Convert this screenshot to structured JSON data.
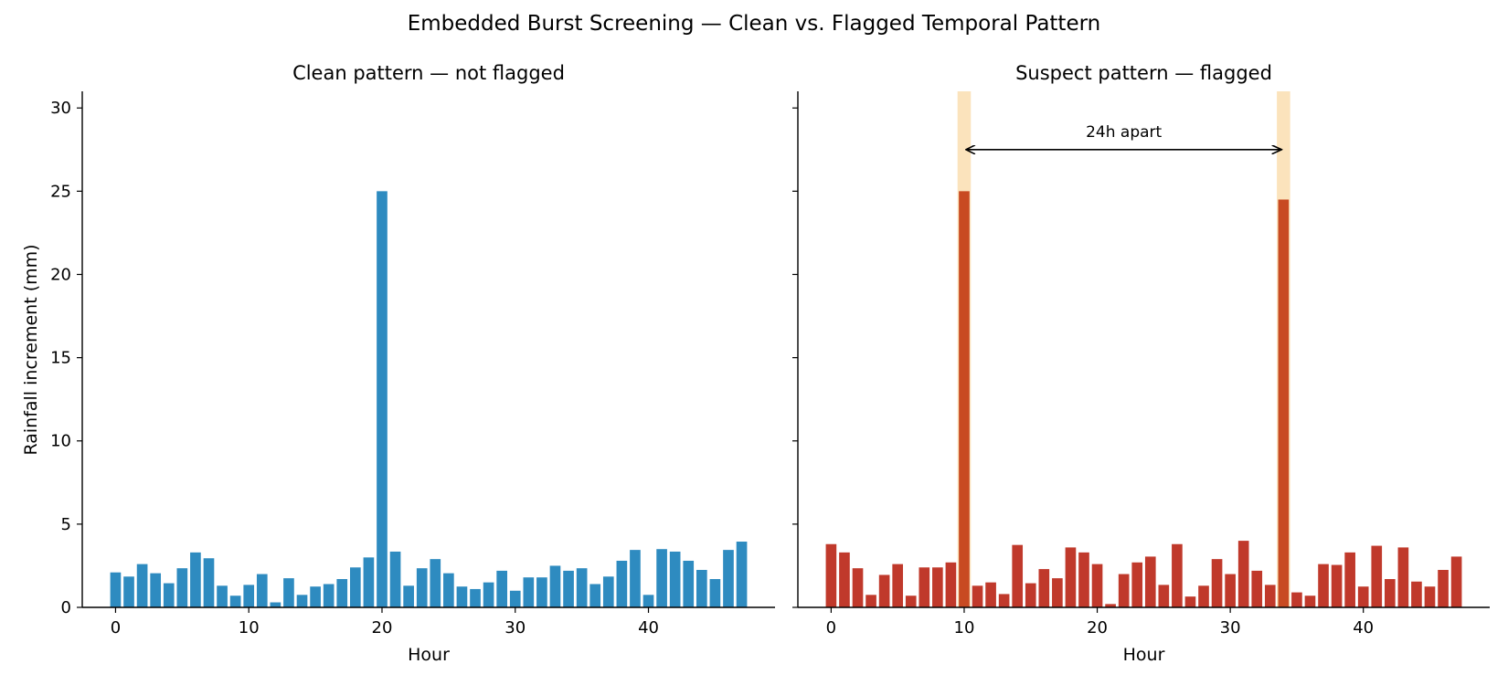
{
  "figure": {
    "title": "Embedded Burst Screening — Clean vs. Flagged Temporal Pattern",
    "ylabel": "Rainfall increment (mm)"
  },
  "chart_data": [
    {
      "type": "bar",
      "title": "Clean pattern — not flagged",
      "xlabel": "Hour",
      "ylabel": "Rainfall increment (mm)",
      "xlim": [
        -2.5,
        49.5
      ],
      "ylim": [
        0,
        31
      ],
      "xticks": [
        0,
        10,
        20,
        30,
        40
      ],
      "yticks": [
        0,
        5,
        10,
        15,
        20,
        25,
        30
      ],
      "color": "#2e8bc0",
      "x": [
        0,
        1,
        2,
        3,
        4,
        5,
        6,
        7,
        8,
        9,
        10,
        11,
        12,
        13,
        14,
        15,
        16,
        17,
        18,
        19,
        20,
        21,
        22,
        23,
        24,
        25,
        26,
        27,
        28,
        29,
        30,
        31,
        32,
        33,
        34,
        35,
        36,
        37,
        38,
        39,
        40,
        41,
        42,
        43,
        44,
        45,
        46,
        47
      ],
      "values": [
        2.1,
        1.85,
        2.6,
        2.05,
        1.45,
        2.35,
        3.3,
        2.95,
        1.3,
        0.7,
        1.35,
        2.0,
        0.3,
        1.75,
        0.75,
        1.25,
        1.4,
        1.7,
        2.4,
        3.0,
        25.0,
        3.35,
        1.3,
        2.35,
        2.9,
        2.05,
        1.25,
        1.1,
        1.5,
        2.2,
        1.0,
        1.8,
        1.8,
        2.5,
        2.2,
        2.35,
        1.4,
        1.85,
        2.8,
        3.45,
        0.75,
        3.5,
        3.35,
        2.8,
        2.25,
        1.7,
        3.45,
        3.95
      ]
    },
    {
      "type": "bar",
      "title": "Suspect pattern — flagged",
      "xlabel": "Hour",
      "xlim": [
        -2.5,
        49.5
      ],
      "ylim": [
        0,
        31
      ],
      "xticks": [
        0,
        10,
        20,
        30,
        40
      ],
      "yticks": [
        0,
        5,
        10,
        15,
        20,
        25,
        30
      ],
      "yticklabels_visible": false,
      "color": "#c0392b",
      "highlight_color": "#f6c26b",
      "flagged_hours": [
        10,
        34
      ],
      "x": [
        0,
        1,
        2,
        3,
        4,
        5,
        6,
        7,
        8,
        9,
        10,
        11,
        12,
        13,
        14,
        15,
        16,
        17,
        18,
        19,
        20,
        21,
        22,
        23,
        24,
        25,
        26,
        27,
        28,
        29,
        30,
        31,
        32,
        33,
        34,
        35,
        36,
        37,
        38,
        39,
        40,
        41,
        42,
        43,
        44,
        45,
        46,
        47
      ],
      "values": [
        3.8,
        3.3,
        2.35,
        0.75,
        1.95,
        2.6,
        0.7,
        2.4,
        2.4,
        2.7,
        25.0,
        1.3,
        1.5,
        0.8,
        3.75,
        1.45,
        2.3,
        1.75,
        3.6,
        3.3,
        2.6,
        0.2,
        2.0,
        2.7,
        3.05,
        1.35,
        3.8,
        0.65,
        1.3,
        2.9,
        2.0,
        4.0,
        2.2,
        1.35,
        24.5,
        0.9,
        0.7,
        2.6,
        2.55,
        3.3,
        1.25,
        3.7,
        1.7,
        3.6,
        1.55,
        1.25,
        2.25,
        3.05
      ],
      "annotation": {
        "text": "24h apart",
        "from_x": 10,
        "to_x": 34,
        "y": 27.5
      }
    }
  ]
}
